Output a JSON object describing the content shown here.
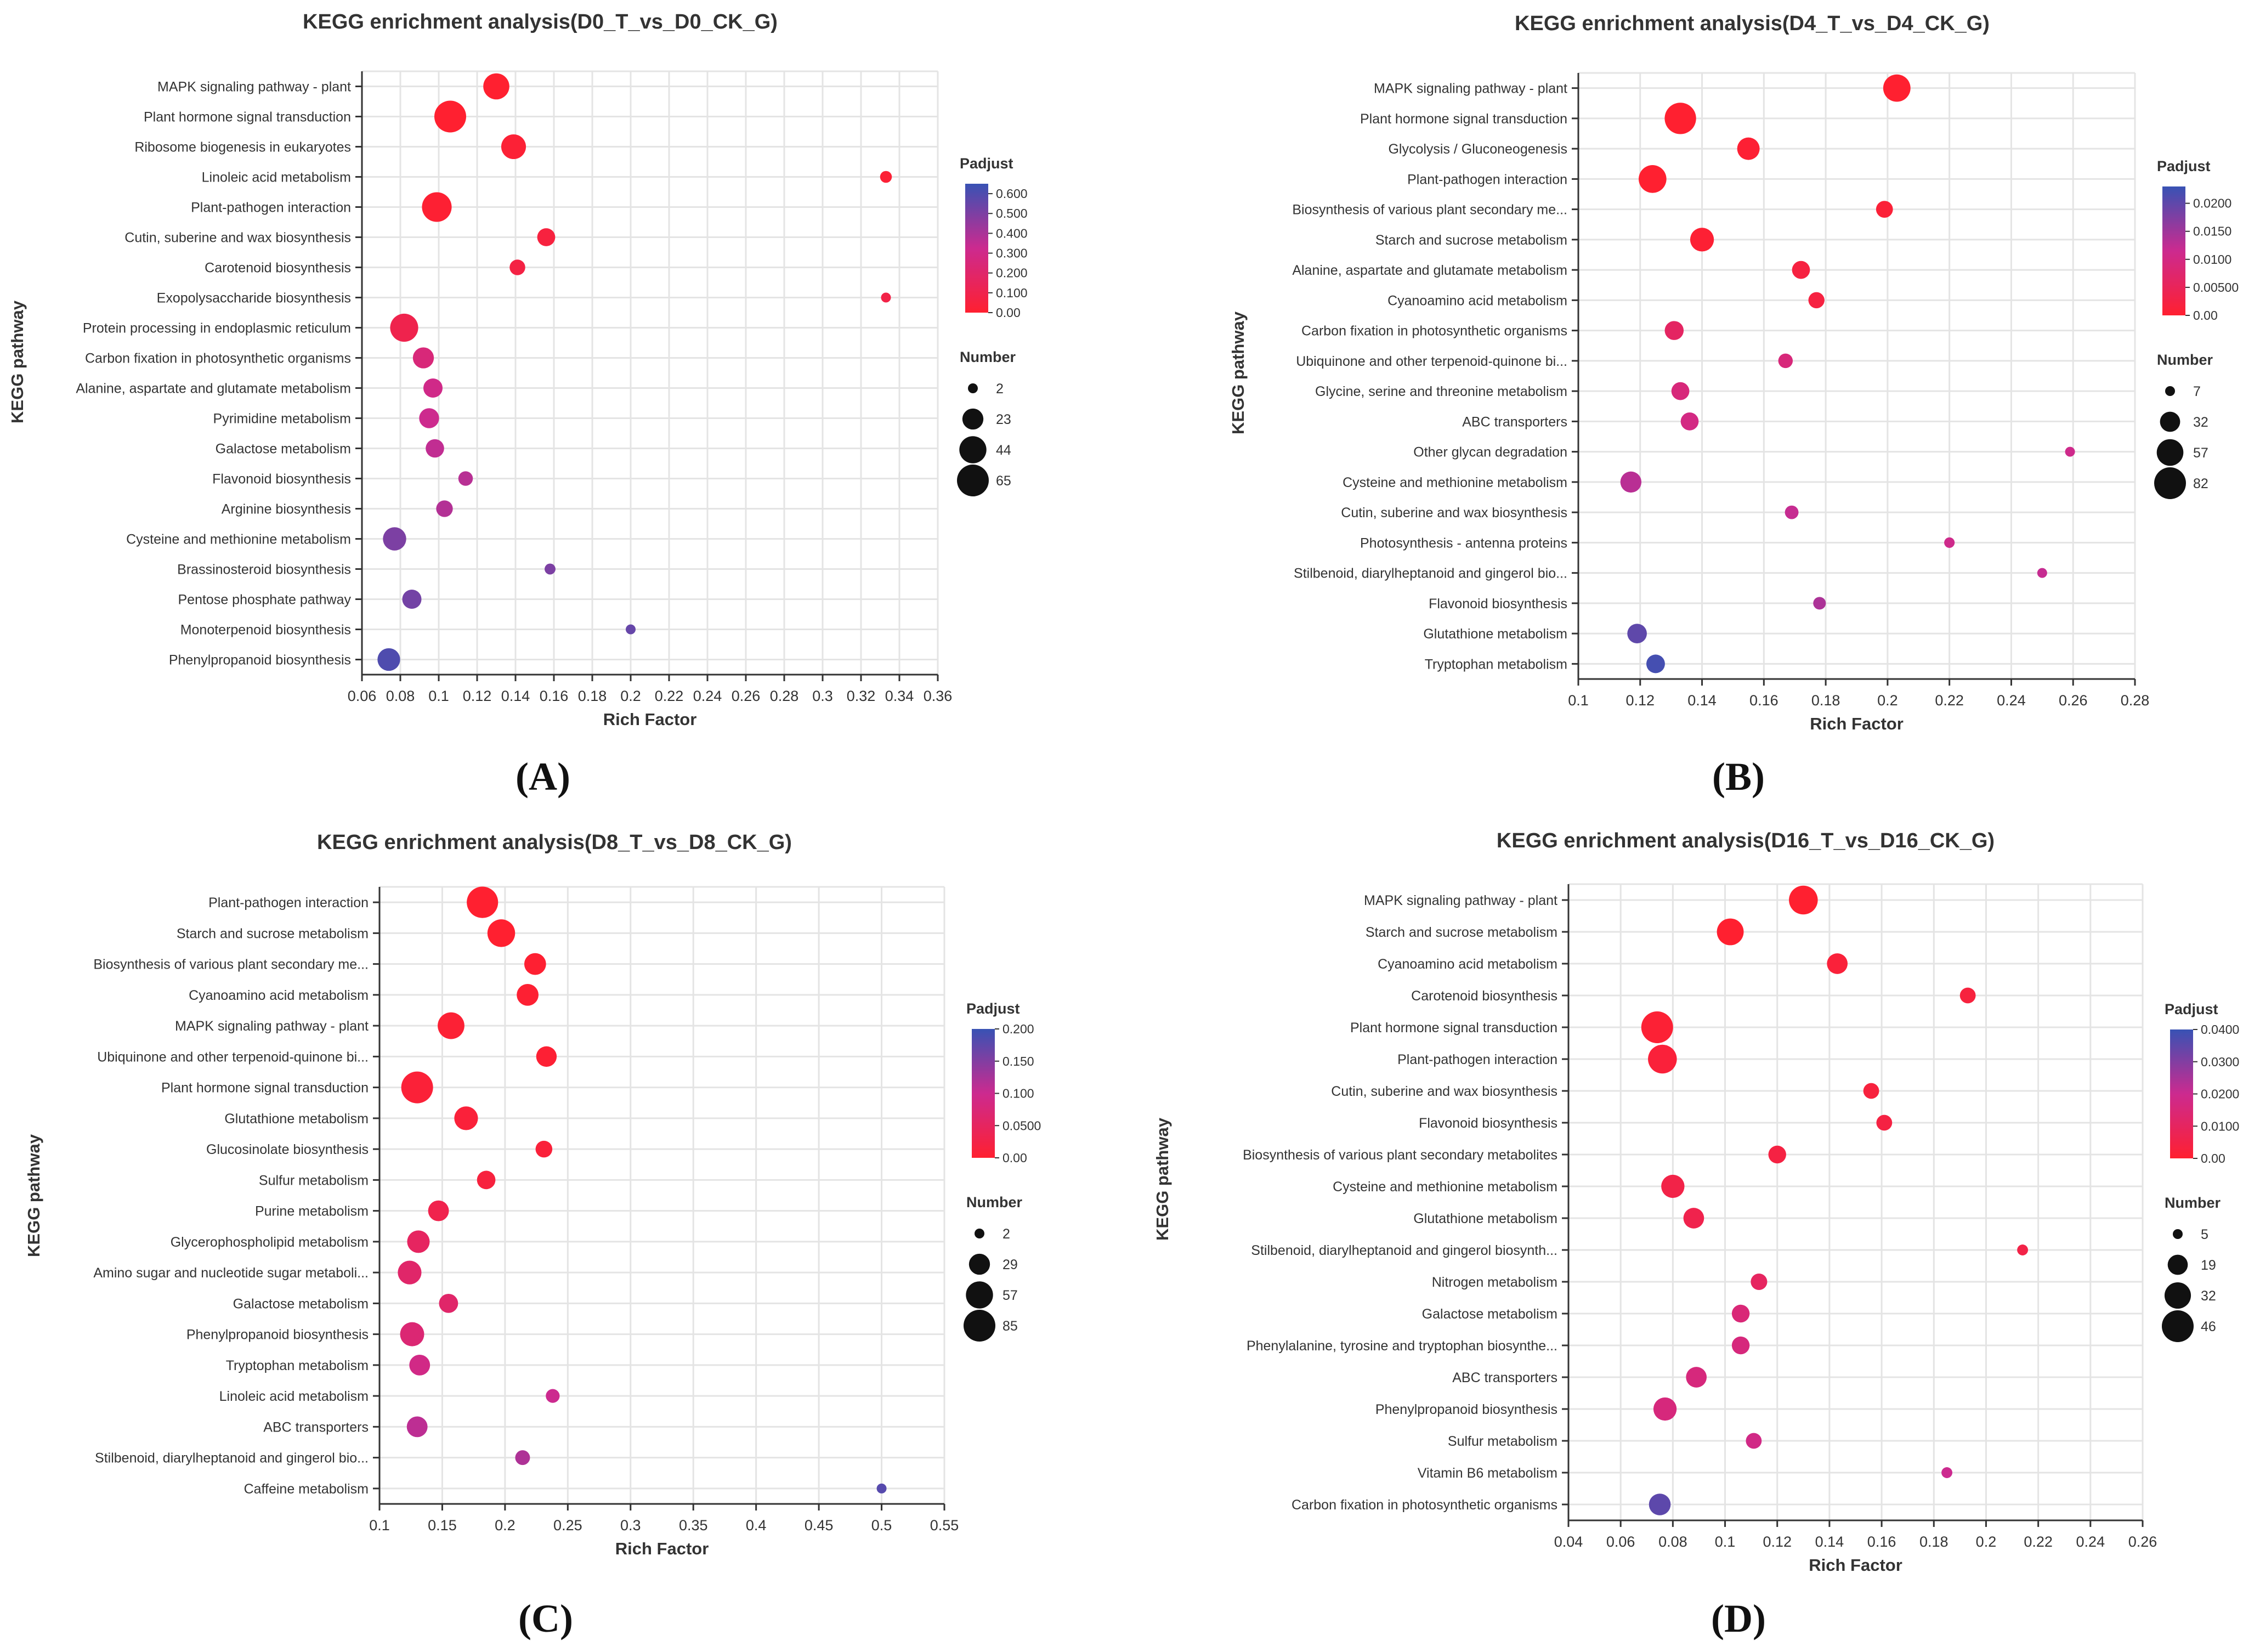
{
  "figure": {
    "panels": [
      {
        "letter": "(A)"
      },
      {
        "letter": "(B)"
      },
      {
        "letter": "(C)"
      },
      {
        "letter": "(D)"
      }
    ]
  },
  "colors": {
    "low": "#ff2030",
    "mid": "#cc2a8f",
    "high": "#3852b4"
  },
  "chart_data": [
    {
      "type": "scatter",
      "title": "KEGG enrichment analysis(D0_T_vs_D0_CK_G)",
      "xlabel": "Rich Factor",
      "ylabel": "KEGG pathway",
      "xlim": [
        0.06,
        0.36
      ],
      "xticks": [
        0.06,
        0.08,
        0.1,
        0.12,
        0.14,
        0.16,
        0.18,
        0.2,
        0.22,
        0.24,
        0.26,
        0.28,
        0.3,
        0.32,
        0.34,
        0.36
      ],
      "xtick_labels": [
        "0.06",
        "0.08",
        "0.1",
        "0.12",
        "0.14",
        "0.16",
        "0.18",
        "0.2",
        "0.22",
        "0.24",
        "0.26",
        "0.28",
        "0.3",
        "0.32",
        "0.34",
        "0.36"
      ],
      "color_legend": {
        "title": "Padjust",
        "max": 0.65,
        "ticks": [
          0,
          0.1,
          0.2,
          0.3,
          0.4,
          0.5,
          0.6
        ],
        "tick_labels": [
          "0.00",
          "0.100",
          "0.200",
          "0.300",
          "0.400",
          "0.500",
          "0.600"
        ]
      },
      "size_legend": {
        "title": "Number",
        "values": [
          2,
          23,
          44,
          65
        ],
        "labels": [
          "2",
          "23",
          "44",
          "65"
        ]
      },
      "points": [
        {
          "pathway": "MAPK signaling pathway - plant",
          "rich_factor": 0.13,
          "padjust": 0.0,
          "number": 40
        },
        {
          "pathway": "Plant hormone signal transduction",
          "rich_factor": 0.106,
          "padjust": 0.0,
          "number": 65
        },
        {
          "pathway": "Ribosome biogenesis in eukaryotes",
          "rich_factor": 0.139,
          "padjust": 0.02,
          "number": 35
        },
        {
          "pathway": "Linoleic acid metabolism",
          "rich_factor": 0.333,
          "padjust": 0.02,
          "number": 4
        },
        {
          "pathway": "Plant-pathogen interaction",
          "rich_factor": 0.099,
          "padjust": 0.01,
          "number": 55
        },
        {
          "pathway": "Cutin, suberine and wax biosynthesis",
          "rich_factor": 0.156,
          "padjust": 0.05,
          "number": 15
        },
        {
          "pathway": "Carotenoid biosynthesis",
          "rich_factor": 0.141,
          "padjust": 0.07,
          "number": 10
        },
        {
          "pathway": "Exopolysaccharide biosynthesis",
          "rich_factor": 0.333,
          "padjust": 0.08,
          "number": 2
        },
        {
          "pathway": "Protein processing in endoplasmic reticulum",
          "rich_factor": 0.082,
          "padjust": 0.1,
          "number": 48
        },
        {
          "pathway": "Carbon fixation in photosynthetic organisms",
          "rich_factor": 0.092,
          "padjust": 0.25,
          "number": 23
        },
        {
          "pathway": "Alanine, aspartate and glutamate metabolism",
          "rich_factor": 0.097,
          "padjust": 0.3,
          "number": 18
        },
        {
          "pathway": "Pyrimidine metabolism",
          "rich_factor": 0.095,
          "padjust": 0.32,
          "number": 20
        },
        {
          "pathway": "Galactose metabolism",
          "rich_factor": 0.098,
          "padjust": 0.35,
          "number": 16
        },
        {
          "pathway": "Flavonoid biosynthesis",
          "rich_factor": 0.114,
          "padjust": 0.37,
          "number": 8
        },
        {
          "pathway": "Arginine biosynthesis",
          "rich_factor": 0.103,
          "padjust": 0.38,
          "number": 12
        },
        {
          "pathway": "Cysteine and methionine metabolism",
          "rich_factor": 0.077,
          "padjust": 0.5,
          "number": 30
        },
        {
          "pathway": "Brassinosteroid biosynthesis",
          "rich_factor": 0.158,
          "padjust": 0.5,
          "number": 3
        },
        {
          "pathway": "Pentose phosphate pathway",
          "rich_factor": 0.086,
          "padjust": 0.52,
          "number": 18
        },
        {
          "pathway": "Monoterpenoid biosynthesis",
          "rich_factor": 0.2,
          "padjust": 0.55,
          "number": 2
        },
        {
          "pathway": "Phenylpropanoid biosynthesis",
          "rich_factor": 0.074,
          "padjust": 0.6,
          "number": 28
        }
      ]
    },
    {
      "type": "scatter",
      "title": "KEGG enrichment analysis(D4_T_vs_D4_CK_G)",
      "xlabel": "Rich Factor",
      "ylabel": "KEGG pathway",
      "xlim": [
        0.1,
        0.28
      ],
      "xticks": [
        0.1,
        0.12,
        0.14,
        0.16,
        0.18,
        0.2,
        0.22,
        0.24,
        0.26,
        0.28
      ],
      "xtick_labels": [
        "0.1",
        "0.12",
        "0.14",
        "0.16",
        "0.18",
        "0.2",
        "0.22",
        "0.24",
        "0.26",
        "0.28"
      ],
      "color_legend": {
        "title": "Padjust",
        "max": 0.023,
        "ticks": [
          0,
          0.005,
          0.01,
          0.015,
          0.02
        ],
        "tick_labels": [
          "0.00",
          "0.00500",
          "0.0100",
          "0.0150",
          "0.0200"
        ]
      },
      "size_legend": {
        "title": "Number",
        "values": [
          7,
          32,
          57,
          82
        ],
        "labels": [
          "7",
          "32",
          "57",
          "82"
        ]
      },
      "points": [
        {
          "pathway": "MAPK signaling pathway - plant",
          "rich_factor": 0.203,
          "padjust": 0.0,
          "number": 60
        },
        {
          "pathway": "Plant hormone signal transduction",
          "rich_factor": 0.133,
          "padjust": 0.0,
          "number": 80
        },
        {
          "pathway": "Glycolysis / Gluconeogenesis",
          "rich_factor": 0.155,
          "padjust": 0.0005,
          "number": 40
        },
        {
          "pathway": "Plant-pathogen interaction",
          "rich_factor": 0.124,
          "padjust": 0.0,
          "number": 62
        },
        {
          "pathway": "Biosynthesis of various plant secondary me...",
          "rich_factor": 0.199,
          "padjust": 0.001,
          "number": 22
        },
        {
          "pathway": "Starch and sucrose metabolism",
          "rich_factor": 0.14,
          "padjust": 0.0005,
          "number": 45
        },
        {
          "pathway": "Alanine, aspartate and glutamate metabolism",
          "rich_factor": 0.172,
          "padjust": 0.002,
          "number": 25
        },
        {
          "pathway": "Cyanoamino acid metabolism",
          "rich_factor": 0.177,
          "padjust": 0.002,
          "number": 20
        },
        {
          "pathway": "Carbon fixation in photosynthetic organisms",
          "rich_factor": 0.131,
          "padjust": 0.006,
          "number": 28
        },
        {
          "pathway": "Ubiquinone and other terpenoid-quinone bi...",
          "rich_factor": 0.167,
          "padjust": 0.009,
          "number": 16
        },
        {
          "pathway": "Glycine, serine and threonine metabolism",
          "rich_factor": 0.133,
          "padjust": 0.009,
          "number": 25
        },
        {
          "pathway": "ABC transporters",
          "rich_factor": 0.136,
          "padjust": 0.01,
          "number": 25
        },
        {
          "pathway": "Other glycan degradation",
          "rich_factor": 0.259,
          "padjust": 0.011,
          "number": 7
        },
        {
          "pathway": "Cysteine and methionine metabolism",
          "rich_factor": 0.117,
          "padjust": 0.013,
          "number": 35
        },
        {
          "pathway": "Cutin, suberine and wax biosynthesis",
          "rich_factor": 0.169,
          "padjust": 0.012,
          "number": 14
        },
        {
          "pathway": "Photosynthesis - antenna proteins",
          "rich_factor": 0.22,
          "padjust": 0.011,
          "number": 8
        },
        {
          "pathway": "Stilbenoid, diarylheptanoid and gingerol bio...",
          "rich_factor": 0.25,
          "padjust": 0.012,
          "number": 6
        },
        {
          "pathway": "Flavonoid biosynthesis",
          "rich_factor": 0.178,
          "padjust": 0.014,
          "number": 12
        },
        {
          "pathway": "Glutathione metabolism",
          "rich_factor": 0.119,
          "padjust": 0.02,
          "number": 30
        },
        {
          "pathway": "Tryptophan metabolism",
          "rich_factor": 0.125,
          "padjust": 0.022,
          "number": 27
        }
      ]
    },
    {
      "type": "scatter",
      "title": "KEGG enrichment analysis(D8_T_vs_D8_CK_G)",
      "xlabel": "Rich Factor",
      "ylabel": "KEGG pathway",
      "xlim": [
        0.1,
        0.55
      ],
      "xticks": [
        0.1,
        0.15,
        0.2,
        0.25,
        0.3,
        0.35,
        0.4,
        0.45,
        0.5,
        0.55
      ],
      "xtick_labels": [
        "0.1",
        "0.15",
        "0.2",
        "0.25",
        "0.3",
        "0.35",
        "0.4",
        "0.45",
        "0.5",
        "0.55"
      ],
      "color_legend": {
        "title": "Padjust",
        "max": 0.2,
        "ticks": [
          0,
          0.05,
          0.1,
          0.15,
          0.2
        ],
        "tick_labels": [
          "0.00",
          "0.0500",
          "0.100",
          "0.150",
          "0.200"
        ]
      },
      "size_legend": {
        "title": "Number",
        "values": [
          2,
          29,
          57,
          85
        ],
        "labels": [
          "2",
          "29",
          "57",
          "85"
        ]
      },
      "points": [
        {
          "pathway": "Plant-pathogen interaction",
          "rich_factor": 0.182,
          "padjust": 0.0,
          "number": 82
        },
        {
          "pathway": "Starch and sucrose metabolism",
          "rich_factor": 0.197,
          "padjust": 0.0,
          "number": 60
        },
        {
          "pathway": "Biosynthesis of various plant secondary me...",
          "rich_factor": 0.224,
          "padjust": 0.002,
          "number": 32
        },
        {
          "pathway": "Cyanoamino acid metabolism",
          "rich_factor": 0.218,
          "padjust": 0.003,
          "number": 32
        },
        {
          "pathway": "MAPK signaling pathway - plant",
          "rich_factor": 0.157,
          "padjust": 0.005,
          "number": 55
        },
        {
          "pathway": "Ubiquinone and other terpenoid-quinone bi...",
          "rich_factor": 0.233,
          "padjust": 0.004,
          "number": 27
        },
        {
          "pathway": "Plant hormone signal transduction",
          "rich_factor": 0.13,
          "padjust": 0.008,
          "number": 85
        },
        {
          "pathway": "Glutathione metabolism",
          "rich_factor": 0.169,
          "padjust": 0.01,
          "number": 40
        },
        {
          "pathway": "Glucosinolate biosynthesis",
          "rich_factor": 0.231,
          "padjust": 0.01,
          "number": 15
        },
        {
          "pathway": "Sulfur metabolism",
          "rich_factor": 0.185,
          "padjust": 0.015,
          "number": 20
        },
        {
          "pathway": "Purine metabolism",
          "rich_factor": 0.147,
          "padjust": 0.03,
          "number": 28
        },
        {
          "pathway": "Glycerophospholipid metabolism",
          "rich_factor": 0.131,
          "padjust": 0.05,
          "number": 35
        },
        {
          "pathway": "Amino sugar and nucleotide sugar metaboli...",
          "rich_factor": 0.124,
          "padjust": 0.06,
          "number": 40
        },
        {
          "pathway": "Galactose metabolism",
          "rich_factor": 0.155,
          "padjust": 0.06,
          "number": 22
        },
        {
          "pathway": "Phenylpropanoid biosynthesis",
          "rich_factor": 0.126,
          "padjust": 0.07,
          "number": 42
        },
        {
          "pathway": "Tryptophan metabolism",
          "rich_factor": 0.132,
          "padjust": 0.09,
          "number": 28
        },
        {
          "pathway": "Linoleic acid metabolism",
          "rich_factor": 0.238,
          "padjust": 0.1,
          "number": 8
        },
        {
          "pathway": "ABC transporters",
          "rich_factor": 0.13,
          "padjust": 0.11,
          "number": 28
        },
        {
          "pathway": "Stilbenoid, diarylheptanoid and gingerol bio...",
          "rich_factor": 0.214,
          "padjust": 0.12,
          "number": 10
        },
        {
          "pathway": "Caffeine metabolism",
          "rich_factor": 0.5,
          "padjust": 0.18,
          "number": 2
        }
      ]
    },
    {
      "type": "scatter",
      "title": "KEGG enrichment analysis(D16_T_vs_D16_CK_G)",
      "xlabel": "Rich Factor",
      "ylabel": "KEGG pathway",
      "xlim": [
        0.04,
        0.26
      ],
      "xticks": [
        0.04,
        0.06,
        0.08,
        0.1,
        0.12,
        0.14,
        0.16,
        0.18,
        0.2,
        0.22,
        0.24,
        0.26
      ],
      "xtick_labels": [
        "0.04",
        "0.06",
        "0.08",
        "0.1",
        "0.12",
        "0.14",
        "0.16",
        "0.18",
        "0.2",
        "0.22",
        "0.24",
        "0.26"
      ],
      "color_legend": {
        "title": "Padjust",
        "max": 0.04,
        "ticks": [
          0,
          0.01,
          0.02,
          0.03,
          0.04
        ],
        "tick_labels": [
          "0.00",
          "0.0100",
          "0.0200",
          "0.0300",
          "0.0400"
        ]
      },
      "size_legend": {
        "title": "Number",
        "values": [
          5,
          19,
          32,
          46
        ],
        "labels": [
          "5",
          "19",
          "32",
          "46"
        ]
      },
      "points": [
        {
          "pathway": "MAPK signaling pathway - plant",
          "rich_factor": 0.13,
          "padjust": 0.0,
          "number": 38
        },
        {
          "pathway": "Starch and sucrose metabolism",
          "rich_factor": 0.102,
          "padjust": 0.0,
          "number": 33
        },
        {
          "pathway": "Cyanoamino acid metabolism",
          "rich_factor": 0.143,
          "padjust": 0.002,
          "number": 20
        },
        {
          "pathway": "Carotenoid biosynthesis",
          "rich_factor": 0.193,
          "padjust": 0.003,
          "number": 12
        },
        {
          "pathway": "Plant hormone signal transduction",
          "rich_factor": 0.074,
          "padjust": 0.001,
          "number": 46
        },
        {
          "pathway": "Plant-pathogen interaction",
          "rich_factor": 0.076,
          "padjust": 0.002,
          "number": 38
        },
        {
          "pathway": "Cutin, suberine and wax biosynthesis",
          "rich_factor": 0.156,
          "padjust": 0.003,
          "number": 12
        },
        {
          "pathway": "Flavonoid biosynthesis",
          "rich_factor": 0.161,
          "padjust": 0.004,
          "number": 12
        },
        {
          "pathway": "Biosynthesis of various plant secondary metabolites",
          "rich_factor": 0.12,
          "padjust": 0.004,
          "number": 15
        },
        {
          "pathway": "Cysteine and methionine metabolism",
          "rich_factor": 0.08,
          "padjust": 0.005,
          "number": 25
        },
        {
          "pathway": "Glutathione metabolism",
          "rich_factor": 0.088,
          "padjust": 0.006,
          "number": 20
        },
        {
          "pathway": "Stilbenoid, diarylheptanoid and gingerol biosynth...",
          "rich_factor": 0.214,
          "padjust": 0.005,
          "number": 6
        },
        {
          "pathway": "Nitrogen metabolism",
          "rich_factor": 0.113,
          "padjust": 0.01,
          "number": 13
        },
        {
          "pathway": "Galactose metabolism",
          "rich_factor": 0.106,
          "padjust": 0.015,
          "number": 15
        },
        {
          "pathway": "Phenylalanine, tyrosine and tryptophan biosynthe...",
          "rich_factor": 0.106,
          "padjust": 0.016,
          "number": 15
        },
        {
          "pathway": "ABC transporters",
          "rich_factor": 0.089,
          "padjust": 0.016,
          "number": 20
        },
        {
          "pathway": "Phenylpropanoid biosynthesis",
          "rich_factor": 0.077,
          "padjust": 0.016,
          "number": 25
        },
        {
          "pathway": "Sulfur metabolism",
          "rich_factor": 0.111,
          "padjust": 0.018,
          "number": 12
        },
        {
          "pathway": "Vitamin B6 metabolism",
          "rich_factor": 0.185,
          "padjust": 0.02,
          "number": 6
        },
        {
          "pathway": "Carbon fixation in photosynthetic organisms",
          "rich_factor": 0.075,
          "padjust": 0.035,
          "number": 22
        }
      ]
    }
  ]
}
